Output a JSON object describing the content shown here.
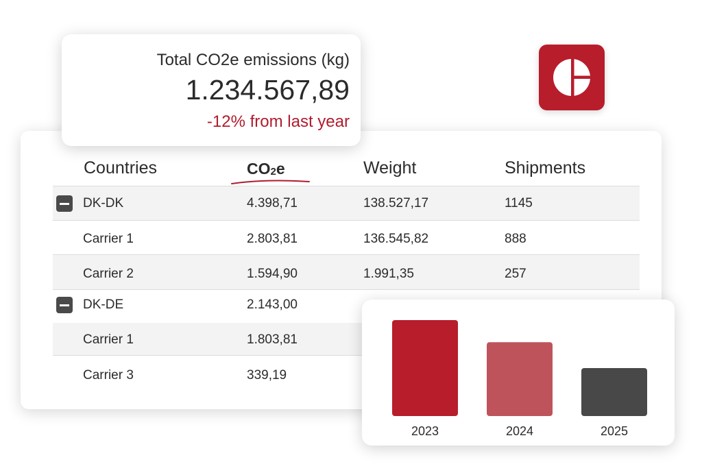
{
  "kpi": {
    "label": "Total CO2e emissions (kg)",
    "value": "1.234.567,89",
    "change": "-12% from last year",
    "change_color": "#b01c2e"
  },
  "logo": {
    "icon": "pie-logo-icon",
    "color": "#b81d2c"
  },
  "table": {
    "headers": {
      "countries": "Countries",
      "co2": "CO",
      "co2_sub": "2",
      "co2_suffix": "e",
      "weight": "Weight",
      "shipments": "Shipments"
    },
    "rows": [
      {
        "name": "DK-DK",
        "co2e": "4.398,71",
        "weight": "138.527,17",
        "shipments": "1145",
        "group": true
      },
      {
        "name": "Carrier 1",
        "co2e": "2.803,81",
        "weight": "136.545,82",
        "shipments": "888",
        "group": false
      },
      {
        "name": "Carrier 2",
        "co2e": "1.594,90",
        "weight": "1.991,35",
        "shipments": "257",
        "group": false
      },
      {
        "name": "DK-DE",
        "co2e": "2.143,00",
        "weight": "",
        "shipments": "",
        "group": true
      },
      {
        "name": "Carrier 1",
        "co2e": "1.803,81",
        "weight": "",
        "shipments": "",
        "group": false
      },
      {
        "name": "Carrier 3",
        "co2e": "339,19",
        "weight": "",
        "shipments": "",
        "group": false
      }
    ]
  },
  "chart_data": {
    "type": "bar",
    "categories": [
      "2023",
      "2024",
      "2025"
    ],
    "values": [
      100,
      77,
      50
    ],
    "colors": [
      "#b81d2c",
      "#bf535c",
      "#484848"
    ],
    "title": "",
    "xlabel": "",
    "ylabel": "",
    "ylim": [
      0,
      100
    ],
    "grid": false
  }
}
